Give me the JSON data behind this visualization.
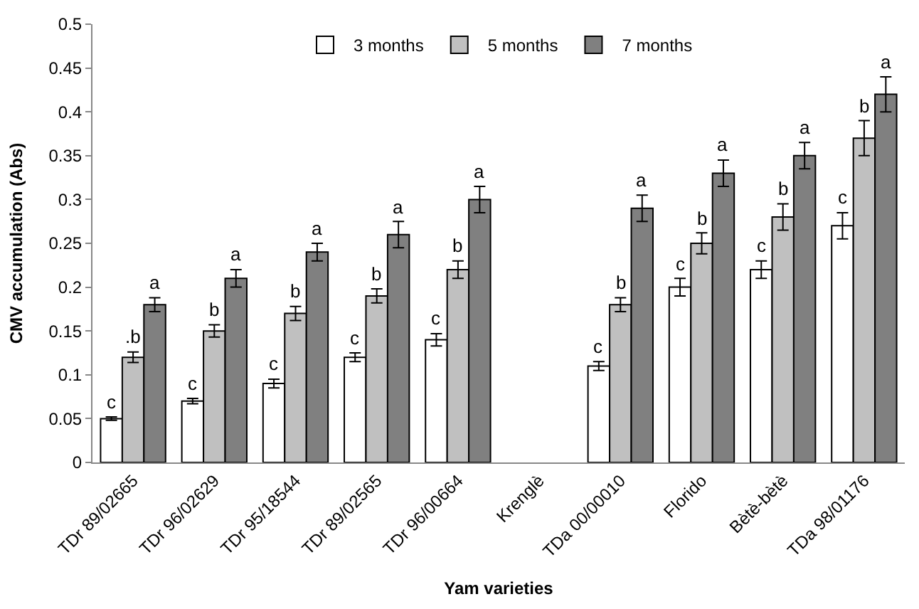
{
  "chart_data": {
    "type": "bar",
    "xlabel": "Yam varieties",
    "ylabel": "CMV accumulation (Abs)",
    "categories": [
      "TDr 89/02665",
      "TDr 96/02629",
      "TDr 95/18544",
      "TDr 89/02565",
      "TDr 96/00664",
      "Krenglè",
      "TDa 00/00010",
      "Florido",
      "Bètè-bètè",
      "TDa 98/01176"
    ],
    "series": [
      {
        "name": "3 months",
        "color": "#ffffff",
        "values": [
          0.05,
          0.07,
          0.09,
          0.12,
          0.14,
          null,
          0.11,
          0.2,
          0.22,
          0.27
        ],
        "errors": [
          0.002,
          0.003,
          0.005,
          0.005,
          0.007,
          null,
          0.005,
          0.01,
          0.01,
          0.015
        ],
        "value_labels": [
          "c",
          "c",
          "c",
          "c",
          "c",
          null,
          "c",
          "c",
          "c",
          "c"
        ]
      },
      {
        "name": "5 months",
        "color": "#c0c0c0",
        "values": [
          0.12,
          0.15,
          0.17,
          0.19,
          0.22,
          null,
          0.18,
          0.25,
          0.28,
          0.37
        ],
        "errors": [
          0.006,
          0.007,
          0.008,
          0.008,
          0.01,
          null,
          0.008,
          0.012,
          0.015,
          0.02
        ],
        "value_labels": [
          ".b",
          "b",
          "b",
          "b",
          "b",
          null,
          "b",
          "b",
          "b",
          "b"
        ]
      },
      {
        "name": "7 months",
        "color": "#808080",
        "values": [
          0.18,
          0.21,
          0.24,
          0.26,
          0.3,
          null,
          0.29,
          0.33,
          0.35,
          0.42
        ],
        "errors": [
          0.008,
          0.01,
          0.01,
          0.015,
          0.015,
          null,
          0.015,
          0.015,
          0.015,
          0.02
        ],
        "value_labels": [
          "a",
          "a",
          "a",
          "a",
          "a",
          null,
          "a",
          "a",
          "a",
          "a"
        ]
      }
    ],
    "ylim": [
      0,
      0.5
    ],
    "yticks": [
      0,
      {
        "value": 0.05,
        "label": "0.05"
      },
      0.1,
      0.15,
      0.2,
      0.25,
      0.3,
      0.35,
      0.4,
      0.45,
      0.5
    ],
    "legend": "top"
  }
}
